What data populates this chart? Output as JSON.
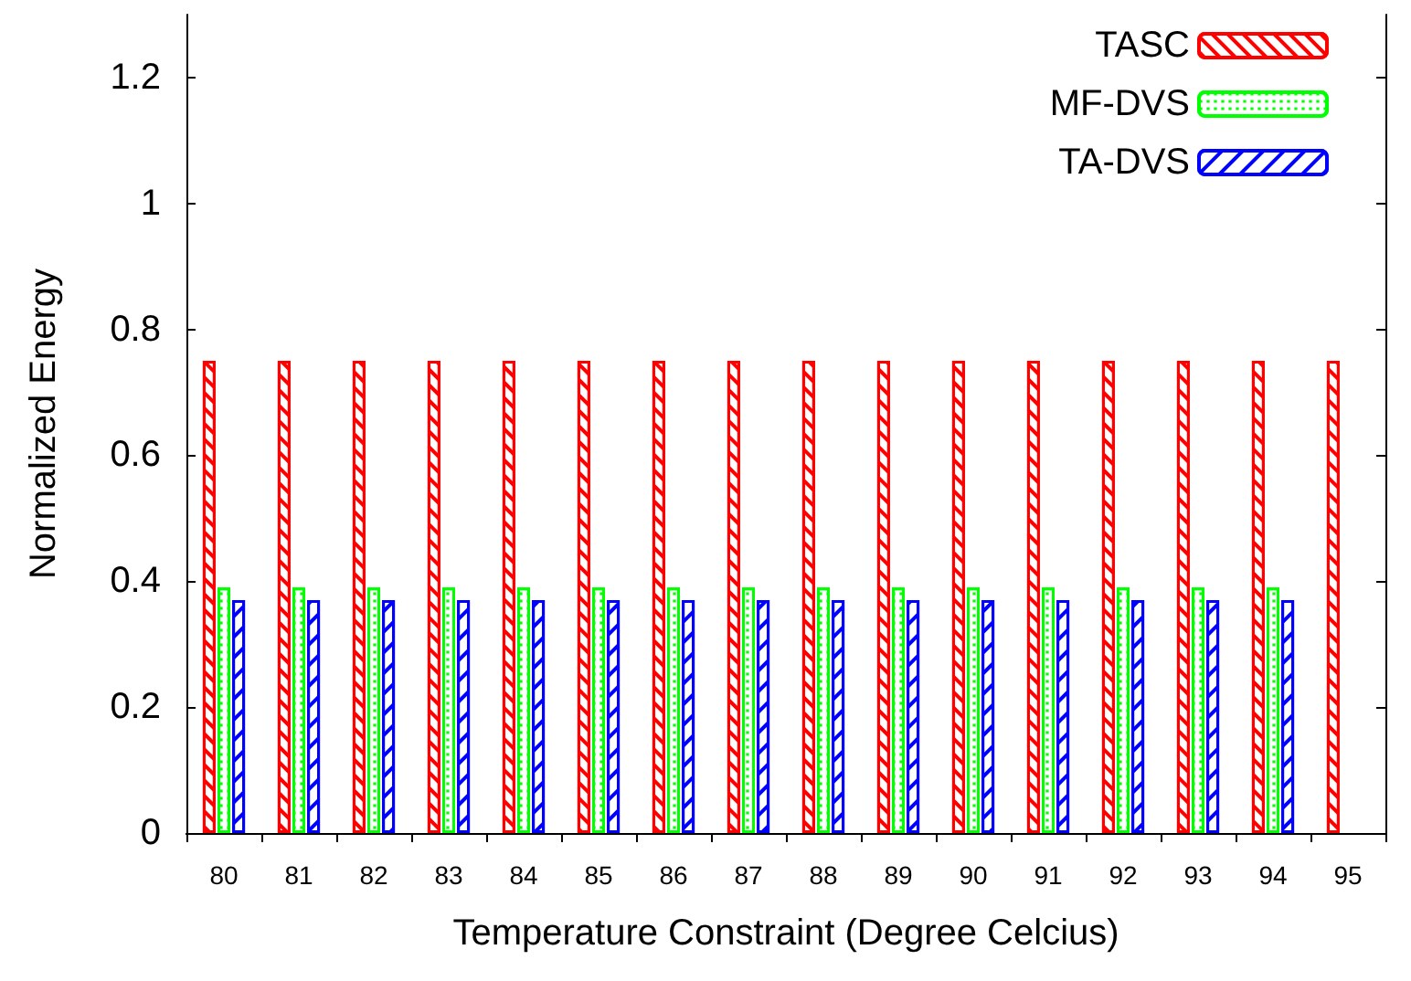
{
  "chart_data": {
    "type": "bar",
    "xlabel": "Temperature Constraint (Degree Celcius)",
    "ylabel": "Normalized Energy",
    "categories": [
      "80",
      "81",
      "82",
      "83",
      "84",
      "85",
      "86",
      "87",
      "88",
      "89",
      "90",
      "91",
      "92",
      "93",
      "94",
      "95"
    ],
    "series": [
      {
        "name": "TASC",
        "color": "#ff0000",
        "values": [
          0.75,
          0.75,
          0.75,
          0.75,
          0.75,
          0.75,
          0.75,
          0.75,
          0.75,
          0.75,
          0.75,
          0.75,
          0.75,
          0.75,
          0.75,
          0.75
        ]
      },
      {
        "name": "MF-DVS",
        "color": "#00ff00",
        "values": [
          0.39,
          0.39,
          0.39,
          0.39,
          0.39,
          0.39,
          0.39,
          0.39,
          0.39,
          0.39,
          0.39,
          0.39,
          0.39,
          0.39,
          0.39,
          null
        ]
      },
      {
        "name": "TA-DVS",
        "color": "#0000ff",
        "values": [
          0.37,
          0.37,
          0.37,
          0.37,
          0.37,
          0.37,
          0.37,
          0.37,
          0.37,
          0.37,
          0.37,
          0.37,
          0.37,
          0.37,
          0.37,
          null
        ]
      }
    ],
    "ylim": [
      0,
      1.3
    ],
    "yticks": [
      0,
      0.2,
      0.4,
      0.6,
      0.8,
      1,
      1.2
    ],
    "grid": false,
    "legend": "top right"
  }
}
